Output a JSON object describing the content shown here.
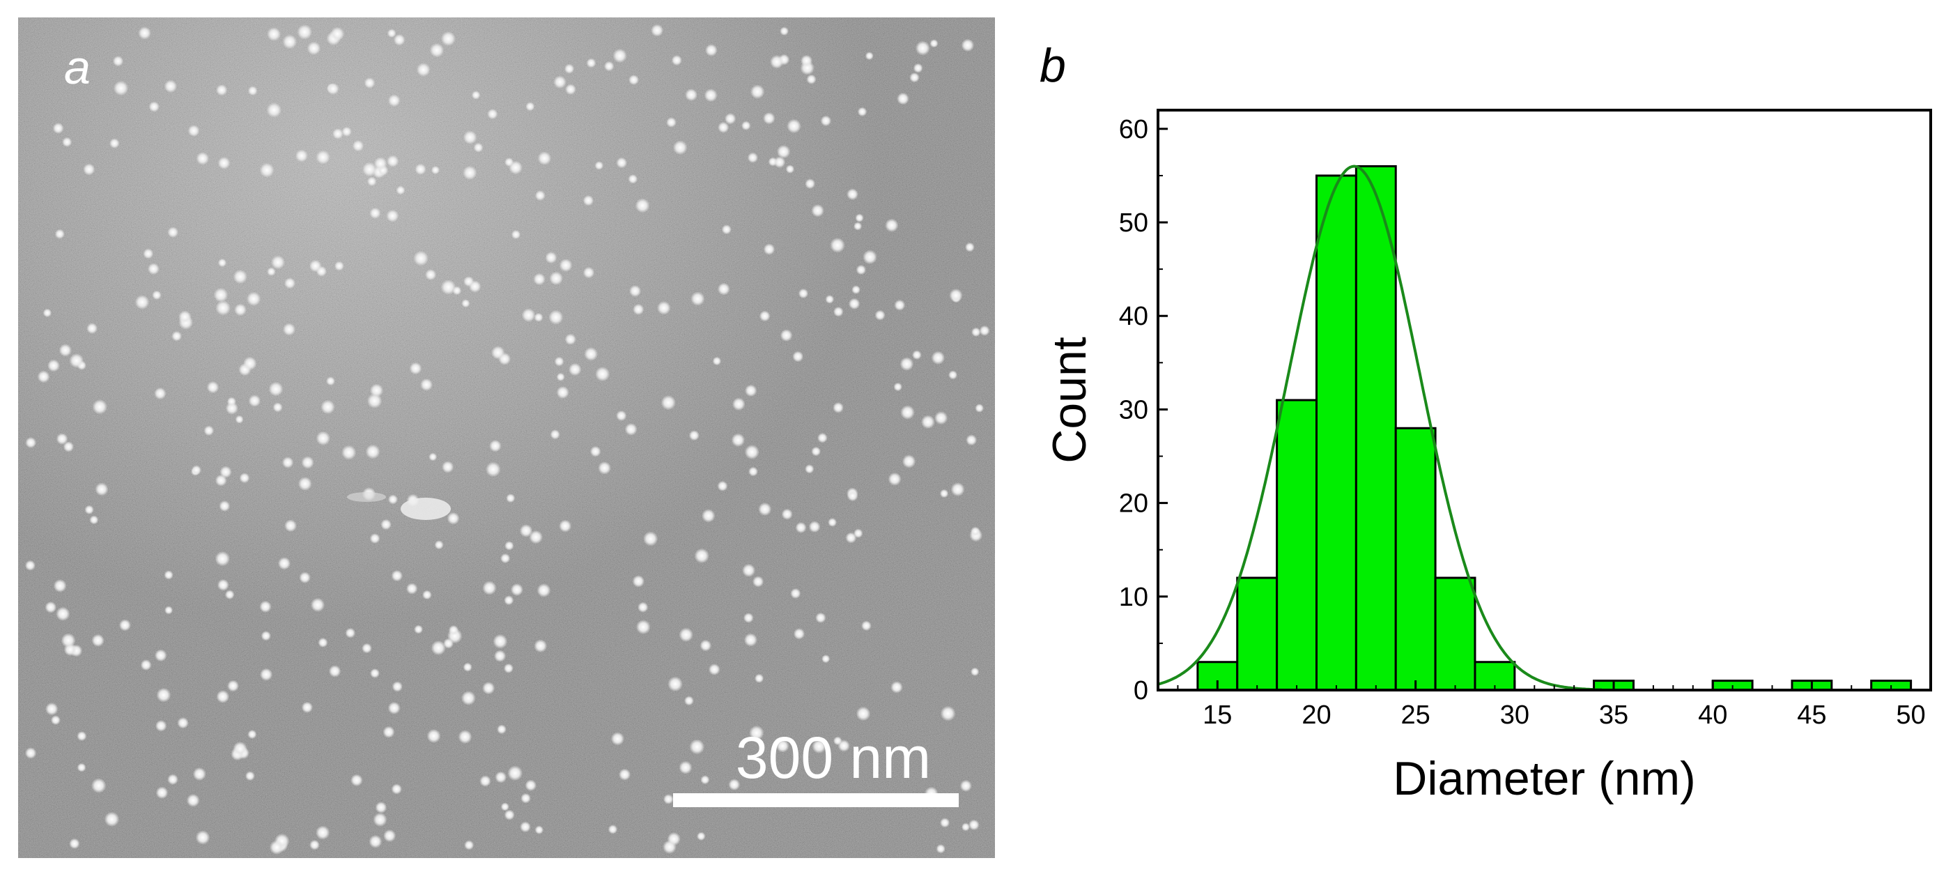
{
  "panels": {
    "a_label": "a",
    "b_label": "b",
    "scale_bar_label": "300 nm"
  },
  "colors": {
    "bar_fill": "#00ee00",
    "fit_line": "#1a8a1a",
    "micrograph_background": "#8a8a8a",
    "particle": "#f2f2f2"
  },
  "chart_data": {
    "type": "bar",
    "title": "",
    "xlabel": "Diameter (nm)",
    "ylabel": "Count",
    "xlim": [
      12,
      51
    ],
    "ylim": [
      0,
      62
    ],
    "xticks": [
      15,
      20,
      25,
      30,
      35,
      40,
      45,
      50
    ],
    "yticks": [
      0,
      10,
      20,
      30,
      40,
      50,
      60
    ],
    "bin_width": 2,
    "bins": [
      {
        "x0": 14,
        "x1": 16,
        "count": 3
      },
      {
        "x0": 16,
        "x1": 18,
        "count": 12
      },
      {
        "x0": 18,
        "x1": 20,
        "count": 31
      },
      {
        "x0": 20,
        "x1": 22,
        "count": 55
      },
      {
        "x0": 22,
        "x1": 24,
        "count": 56
      },
      {
        "x0": 24,
        "x1": 26,
        "count": 28
      },
      {
        "x0": 26,
        "x1": 28,
        "count": 12
      },
      {
        "x0": 28,
        "x1": 30,
        "count": 3
      },
      {
        "x0": 34,
        "x1": 36,
        "count": 1
      },
      {
        "x0": 40,
        "x1": 42,
        "count": 1
      },
      {
        "x0": 44,
        "x1": 46,
        "count": 1
      },
      {
        "x0": 48,
        "x1": 50,
        "count": 1
      }
    ],
    "fit": {
      "type": "gaussian",
      "center": 21.9,
      "sigma": 3.3,
      "amplitude": 56
    },
    "grid": false,
    "legend": "none"
  }
}
